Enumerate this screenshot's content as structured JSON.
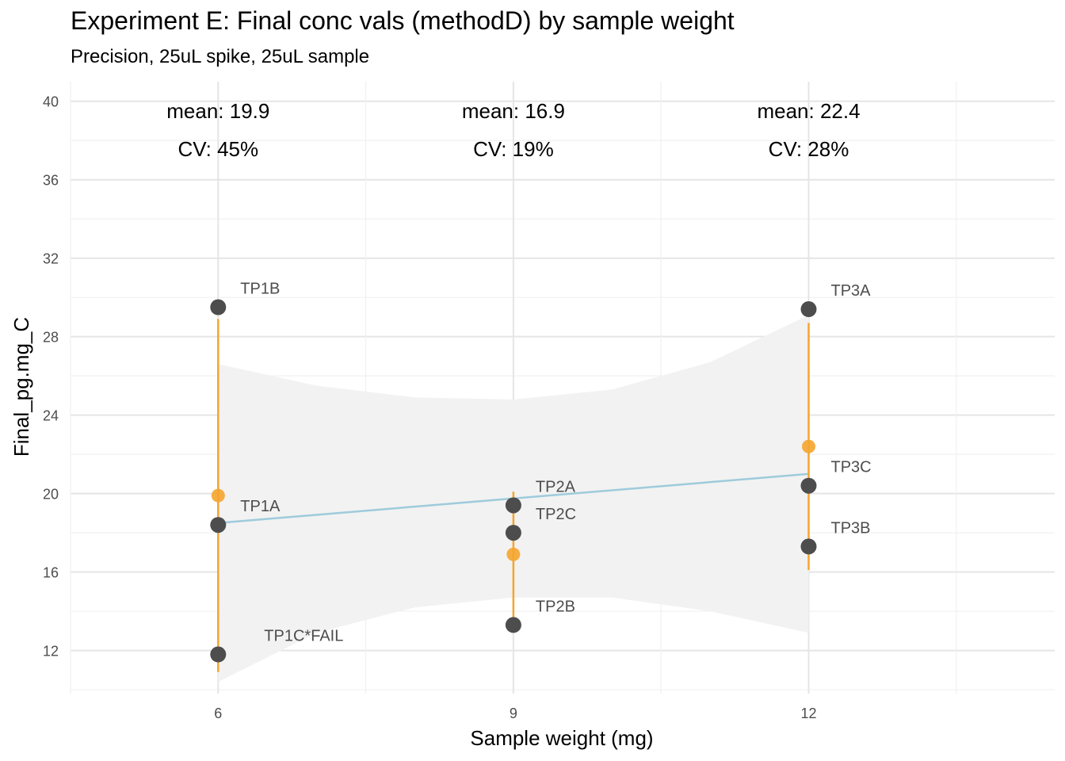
{
  "chart_data": {
    "type": "scatter",
    "title": "Experiment E: Final conc vals (methodD) by sample weight",
    "subtitle": "Precision, 25uL spike, 25uL sample",
    "xlabel": "Sample weight (mg)",
    "ylabel": "Final_pg.mg_C",
    "xlim": [
      4.5,
      14.5
    ],
    "ylim": [
      9.8,
      41
    ],
    "x_ticks": [
      6,
      9,
      12
    ],
    "y_ticks": [
      12,
      16,
      20,
      24,
      28,
      32,
      36,
      40
    ],
    "grid": true,
    "points": [
      {
        "x": 6,
        "y": 29.5,
        "label": "TP1B"
      },
      {
        "x": 6,
        "y": 18.4,
        "label": "TP1A"
      },
      {
        "x": 6,
        "y": 11.8,
        "label": "TP1C*FAIL"
      },
      {
        "x": 9,
        "y": 19.4,
        "label": "TP2A"
      },
      {
        "x": 9,
        "y": 18.0,
        "label": "TP2C"
      },
      {
        "x": 9,
        "y": 13.3,
        "label": "TP2B"
      },
      {
        "x": 12,
        "y": 29.4,
        "label": "TP3A"
      },
      {
        "x": 12,
        "y": 20.4,
        "label": "TP3C"
      },
      {
        "x": 12,
        "y": 17.3,
        "label": "TP3B"
      }
    ],
    "means": [
      {
        "x": 6,
        "mean": 19.9,
        "ymin": 10.9,
        "ymax": 28.9
      },
      {
        "x": 9,
        "mean": 16.9,
        "ymin": 13.7,
        "ymax": 20.1
      },
      {
        "x": 12,
        "mean": 22.4,
        "ymin": 16.1,
        "ymax": 28.7
      }
    ],
    "annotations": [
      {
        "x": 6,
        "mean_text": "mean: 19.9",
        "cv_text": "CV: 45%"
      },
      {
        "x": 9,
        "mean_text": "mean: 16.9",
        "cv_text": "CV: 19%"
      },
      {
        "x": 12,
        "mean_text": "mean: 22.4",
        "cv_text": "CV: 28%"
      }
    ],
    "fit_line": {
      "x": [
        6,
        12
      ],
      "y": [
        18.5,
        21.0
      ]
    },
    "confidence_band": {
      "x": [
        6,
        7,
        8,
        9,
        10,
        11,
        12
      ],
      "upper": [
        26.6,
        25.5,
        24.9,
        24.8,
        25.3,
        26.7,
        29.1
      ],
      "lower": [
        10.4,
        12.9,
        14.2,
        14.7,
        14.7,
        14.0,
        12.9
      ]
    },
    "colors": {
      "point": "#4d4d4d",
      "mean_point": "#f5a52e",
      "range_line": "#f5a52e",
      "fit_line": "#9ecbdc",
      "band": "#f2f2f2",
      "grid_major": "#e5e5e5",
      "grid_minor": "#f0f0f0"
    }
  }
}
